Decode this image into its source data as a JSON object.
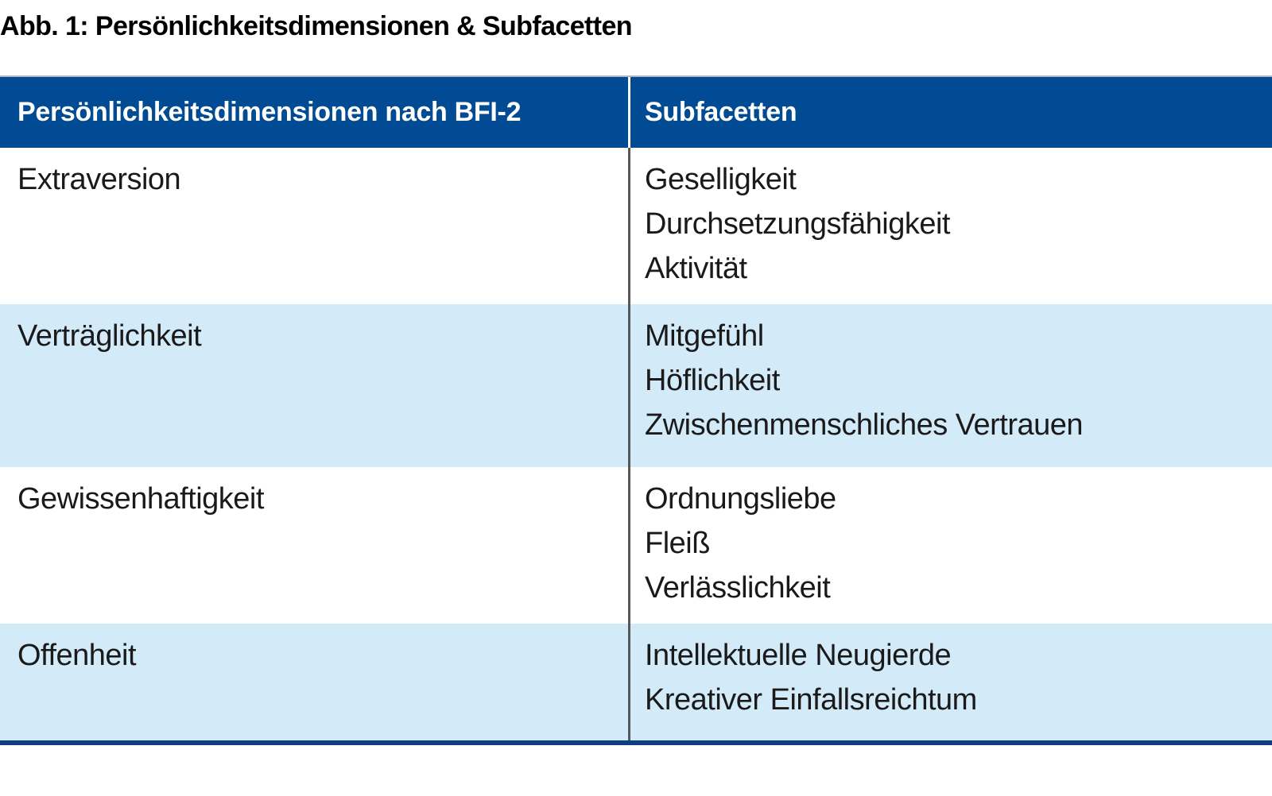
{
  "figure": {
    "title": "Abb. 1: Persönlichkeitsdimensionen & Subfacetten"
  },
  "chart_data": {
    "type": "table",
    "title": "Abb. 1: Persönlichkeitsdimensionen & Subfacetten",
    "columns": [
      "Persönlichkeitsdimensionen nach BFI-2",
      "Subfacetten"
    ],
    "rows": [
      {
        "dimension": "Extraversion",
        "subfacets": [
          "Geselligkeit",
          "Durchsetzungsfähigkeit",
          "Aktivität"
        ]
      },
      {
        "dimension": "Verträglichkeit",
        "subfacets": [
          "Mitgefühl",
          "Höflichkeit",
          "Zwischenmenschliches Vertrauen"
        ]
      },
      {
        "dimension": "Gewissenhaftigkeit",
        "subfacets": [
          "Ordnungsliebe",
          "Fleiß",
          "Verlässlichkeit"
        ]
      },
      {
        "dimension": "Offenheit",
        "subfacets": [
          "Intellektuelle Neugierde",
          "Kreativer Einfallsreichtum"
        ]
      }
    ]
  },
  "colors": {
    "header_bg": "#004B93",
    "header_text": "#FFFFFF",
    "row_bg": "#FFFFFF",
    "row_alt_bg": "#D3EAF9",
    "bottom_border": "#0F3D80",
    "column_divider": "#58585A",
    "body_text": "#1A1A1A"
  }
}
